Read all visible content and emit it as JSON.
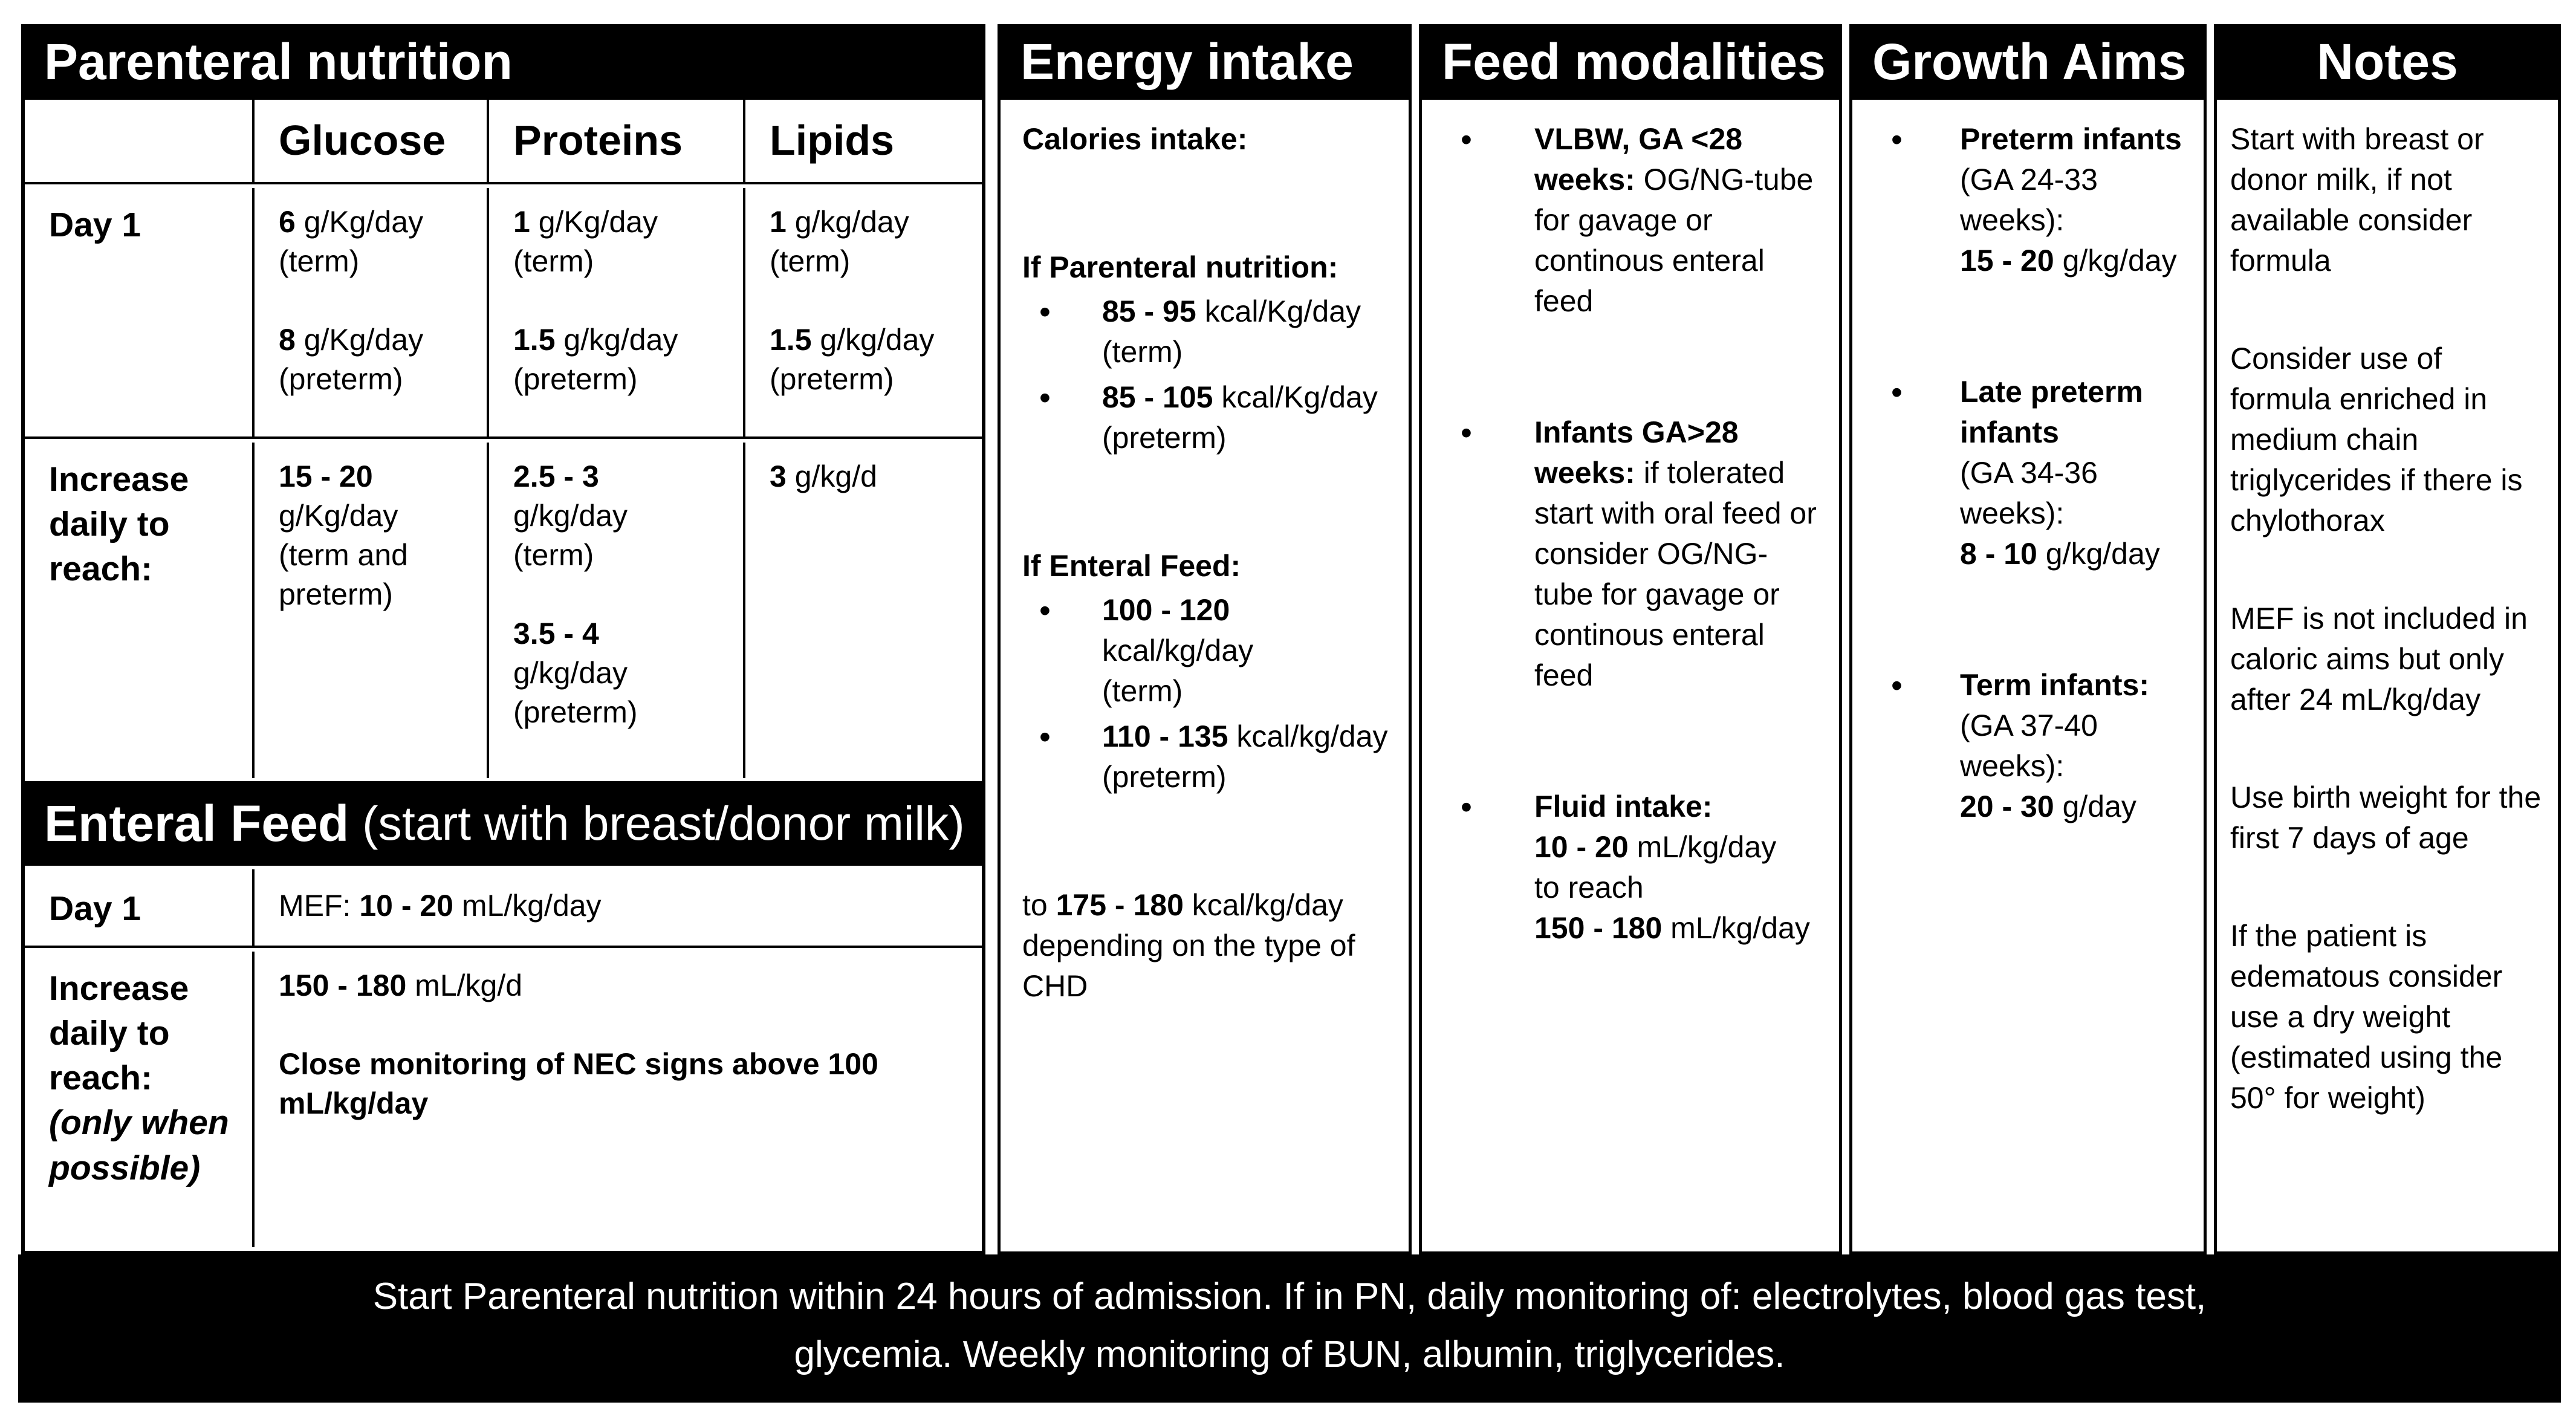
{
  "parenteral": {
    "title": "Parenteral nutrition",
    "columns": [
      "Glucose",
      "Proteins",
      "Lipids"
    ],
    "rows": {
      "day1": {
        "label": "Day 1",
        "glucose": [
          {
            "t": "6",
            "b": true
          },
          {
            "t": " g/Kg/day\n(term)\n\n"
          },
          {
            "t": "8",
            "b": true
          },
          {
            "t": " g/Kg/day\n(preterm)"
          }
        ],
        "proteins": [
          {
            "t": "1",
            "b": true
          },
          {
            "t": " g/Kg/day\n(term)\n\n"
          },
          {
            "t": "1.5",
            "b": true
          },
          {
            "t": " g/kg/day\n(preterm)"
          }
        ],
        "lipids": [
          {
            "t": "1",
            "b": true
          },
          {
            "t": " g/kg/day\n(term)\n\n"
          },
          {
            "t": "1.5",
            "b": true
          },
          {
            "t": " g/kg/day\n(preterm)"
          }
        ]
      },
      "increase": {
        "label": "Increase daily to reach:",
        "glucose": [
          {
            "t": "15 - 20",
            "b": true
          },
          {
            "t": "\ng/Kg/day\n(term and\npreterm)"
          }
        ],
        "proteins": [
          {
            "t": "2.5 - 3",
            "b": true
          },
          {
            "t": "\ng/kg/day\n(term)\n\n"
          },
          {
            "t": "3.5 - 4",
            "b": true
          },
          {
            "t": "\ng/kg/day\n(preterm)"
          }
        ],
        "lipids": [
          {
            "t": "3",
            "b": true
          },
          {
            "t": " g/kg/d"
          }
        ]
      }
    }
  },
  "enteral": {
    "title": [
      {
        "t": "Enteral Feed",
        "b": true
      },
      {
        "t": " (start with breast/donor milk)"
      }
    ],
    "rows": {
      "day1": {
        "label": "Day 1",
        "content": [
          {
            "t": "MEF: "
          },
          {
            "t": "10 - 20",
            "b": true
          },
          {
            "t": " mL/kg/day"
          }
        ]
      },
      "increase": {
        "label": [
          {
            "t": "Increase daily to reach:",
            "b": true
          },
          {
            "t": "\n"
          },
          {
            "t": "(only when possible)",
            "b": true,
            "i": true
          }
        ],
        "content": [
          {
            "t": "150 - 180",
            "b": true
          },
          {
            "t": " mL/kg/d"
          },
          {
            "t": "\n\n"
          },
          {
            "t": "Close monitoring of NEC signs above 100 mL/kg/day",
            "b": true
          }
        ]
      }
    }
  },
  "energy": {
    "title": "Energy intake",
    "intro": "Calories intake:",
    "pn_heading": "If Parenteral nutrition:",
    "pn_bullets": [
      [
        {
          "t": "85 - 95",
          "b": true
        },
        {
          "t": " kcal/Kg/day\n(term)"
        }
      ],
      [
        {
          "t": "85 - 105",
          "b": true
        },
        {
          "t": " kcal/Kg/day\n(preterm)"
        }
      ]
    ],
    "ef_heading": "If Enteral Feed:",
    "ef_bullets": [
      [
        {
          "t": "100 - 120",
          "b": true
        },
        {
          "t": " kcal/kg/day\n(term)"
        }
      ],
      [
        {
          "t": "110 - 135",
          "b": true
        },
        {
          "t": " kcal/kg/day\n(preterm)"
        }
      ]
    ],
    "footer": [
      {
        "t": "to "
      },
      {
        "t": "175 - 180",
        "b": true
      },
      {
        "t": " kcal/kg/day depending on the type of CHD"
      }
    ]
  },
  "feed": {
    "title": "Feed modalities",
    "bullets": [
      [
        {
          "t": "VLBW, GA <28 weeks:",
          "b": true
        },
        {
          "t": " OG/NG-tube for gavage or continous enteral feed"
        }
      ],
      [
        {
          "t": "Infants GA>28 weeks:",
          "b": true
        },
        {
          "t": " if tolerated start with oral feed or consider OG/NG-tube for gavage or continous enteral feed"
        }
      ],
      [
        {
          "t": "Fluid intake:",
          "b": true
        },
        {
          "t": "\n"
        },
        {
          "t": "10 - 20",
          "b": true
        },
        {
          "t": " mL/kg/day\nto reach\n"
        },
        {
          "t": "150 - 180",
          "b": true
        },
        {
          "t": " mL/kg/day"
        }
      ]
    ]
  },
  "growth": {
    "title": "Growth Aims",
    "bullets": [
      [
        {
          "t": "Preterm infants",
          "b": true
        },
        {
          "t": "\n(GA 24-33\nweeks):\n"
        },
        {
          "t": "15 - 20",
          "b": true
        },
        {
          "t": " g/kg/day"
        }
      ],
      [
        {
          "t": "Late preterm\ninfants",
          "b": true
        },
        {
          "t": "\n(GA 34-36\nweeks):\n"
        },
        {
          "t": "8 - 10",
          "b": true
        },
        {
          "t": " g/kg/day"
        }
      ],
      [
        {
          "t": "Term infants:",
          "b": true
        },
        {
          "t": "\n(GA 37-40\nweeks):\n"
        },
        {
          "t": "20 - 30",
          "b": true
        },
        {
          "t": " g/day"
        }
      ]
    ]
  },
  "notes": {
    "title": "Notes",
    "paragraphs": [
      "Start with breast or donor milk, if not available consider formula",
      "Consider use of formula enriched in medium chain triglycerides if there is chylothorax",
      "MEF is not included in caloric aims but only after 24 mL/kg/day",
      "Use birth weight for the first 7 days of age",
      "If the patient is edematous consider use a dry weight (estimated using the 50° for weight)"
    ]
  },
  "footer": {
    "line1": "Start Parenteral nutrition within 24 hours of admission. If in PN, daily monitoring of: electrolytes, blood gas test,",
    "line2": "glycemia. Weekly monitoring of BUN, albumin, triglycerides."
  }
}
